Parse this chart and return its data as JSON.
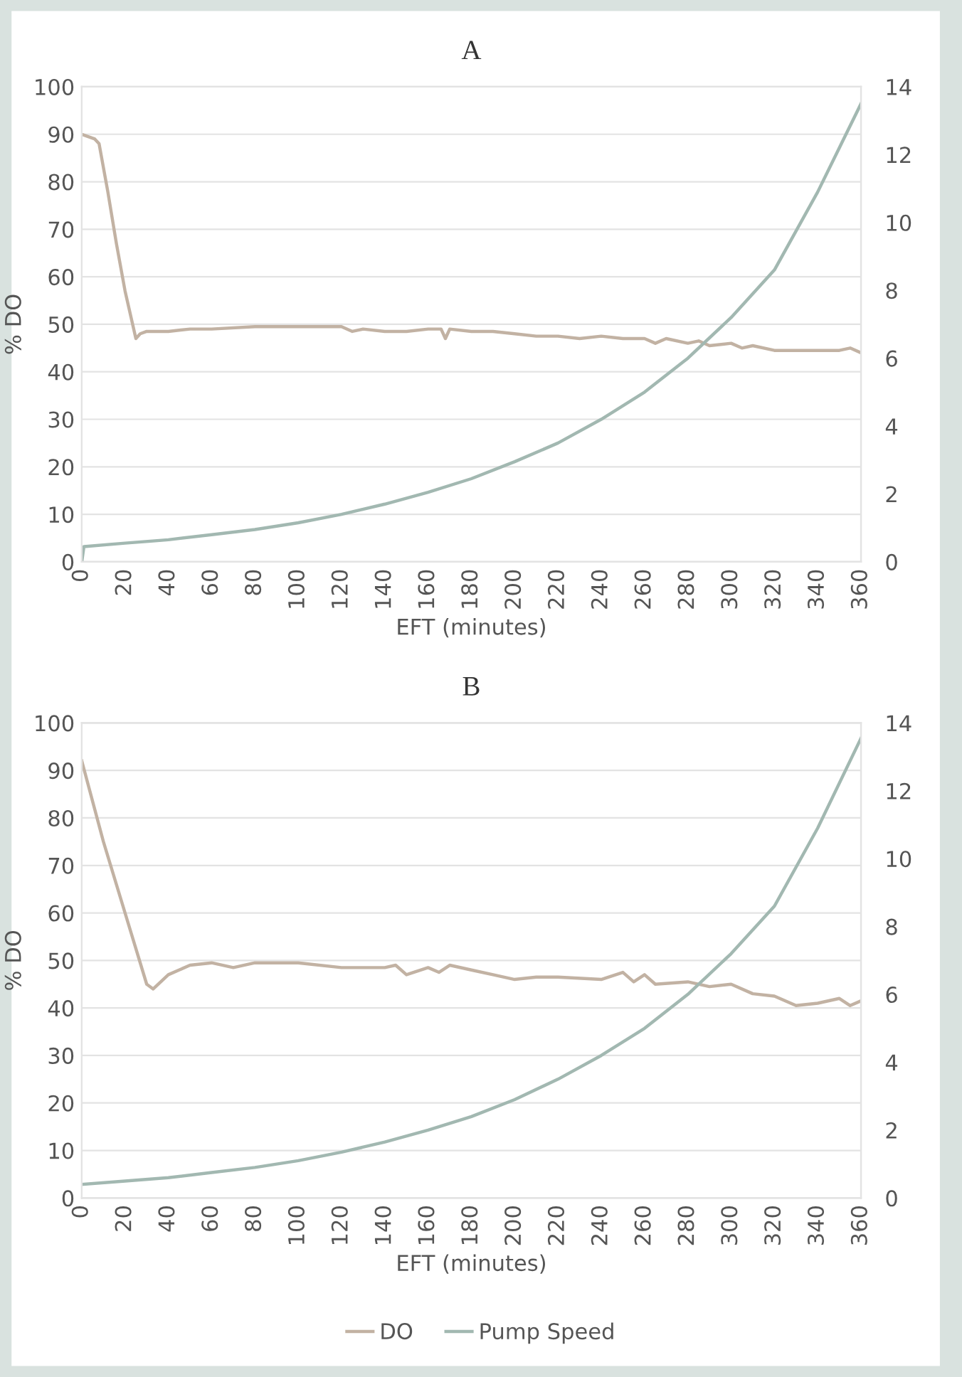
{
  "chart_data": [
    {
      "type": "line",
      "title": "A",
      "xlabel": "EFT (minutes)",
      "ylabel": "% DO",
      "xlim": [
        0,
        360
      ],
      "xticks": [
        0,
        20,
        40,
        60,
        80,
        100,
        120,
        140,
        160,
        180,
        200,
        220,
        240,
        260,
        280,
        300,
        320,
        340,
        360
      ],
      "ylim": [
        0,
        100
      ],
      "yticks": [
        0,
        10,
        20,
        30,
        40,
        50,
        60,
        70,
        80,
        90,
        100
      ],
      "y2lim": [
        0,
        14
      ],
      "y2ticks": [
        0,
        2,
        4,
        6,
        8,
        10,
        12,
        14
      ],
      "grid": "y",
      "legend": false,
      "series": [
        {
          "color": "#c2b2a3",
          "x": [
            0,
            3,
            6,
            8,
            12,
            16,
            20,
            25,
            27,
            30,
            40,
            50,
            60,
            80,
            100,
            120,
            125,
            130,
            140,
            150,
            160,
            166,
            168,
            170,
            180,
            190,
            200,
            210,
            220,
            230,
            240,
            250,
            260,
            265,
            270,
            280,
            285,
            290,
            300,
            305,
            310,
            320,
            330,
            340,
            350,
            355,
            360
          ],
          "values": [
            90,
            89.5,
            89,
            88,
            78,
            67,
            57,
            47,
            48,
            48.5,
            48.5,
            49,
            49,
            49.5,
            49.5,
            49.5,
            48.5,
            49,
            48.5,
            48.5,
            49,
            49,
            47,
            49,
            48.5,
            48.5,
            48,
            47.5,
            47.5,
            47,
            47.5,
            47,
            47,
            46,
            47,
            46,
            46.5,
            45.5,
            46,
            45,
            45.5,
            44.5,
            44.5,
            44.5,
            44.5,
            45,
            44
          ]
        },
        {
          "color": "#a2b8b1",
          "axis": "y2",
          "x": [
            0,
            1,
            20,
            40,
            60,
            80,
            100,
            120,
            140,
            160,
            180,
            200,
            220,
            240,
            260,
            280,
            300,
            320,
            340,
            360
          ],
          "values": [
            0,
            0.45,
            0.55,
            0.65,
            0.8,
            0.95,
            1.15,
            1.4,
            1.7,
            2.05,
            2.45,
            2.95,
            3.5,
            4.2,
            5.0,
            6.0,
            7.2,
            8.6,
            10.9,
            13.5
          ]
        }
      ]
    },
    {
      "type": "line",
      "title": "B",
      "xlabel": "EFT (minutes)",
      "ylabel": "% DO",
      "xlim": [
        0,
        360
      ],
      "xticks": [
        0,
        20,
        40,
        60,
        80,
        100,
        120,
        140,
        160,
        180,
        200,
        220,
        240,
        260,
        280,
        300,
        320,
        340,
        360
      ],
      "ylim": [
        0,
        100
      ],
      "yticks": [
        0,
        10,
        20,
        30,
        40,
        50,
        60,
        70,
        80,
        90,
        100
      ],
      "y2lim": [
        0,
        14
      ],
      "y2ticks": [
        0,
        2,
        4,
        6,
        8,
        10,
        12,
        14
      ],
      "grid": "y",
      "legend": "bottom",
      "series": [
        {
          "name": "DO",
          "color": "#c2b2a3",
          "x": [
            0,
            10,
            20,
            30,
            33,
            40,
            50,
            60,
            70,
            80,
            100,
            120,
            140,
            145,
            150,
            160,
            165,
            170,
            180,
            190,
            200,
            210,
            220,
            240,
            250,
            255,
            260,
            265,
            280,
            290,
            300,
            310,
            320,
            330,
            340,
            350,
            355,
            360
          ],
          "values": [
            92,
            75,
            60,
            45,
            44,
            47,
            49,
            49.5,
            48.5,
            49.5,
            49.5,
            48.5,
            48.5,
            49,
            47,
            48.5,
            47.5,
            49,
            48,
            47,
            46,
            46.5,
            46.5,
            46,
            47.5,
            45.5,
            47,
            45,
            45.5,
            44.5,
            45,
            43,
            42.5,
            40.5,
            41,
            42,
            40.5,
            41.5
          ]
        },
        {
          "name": "Pump Speed",
          "color": "#a2b8b1",
          "axis": "y2",
          "x": [
            0,
            20,
            40,
            60,
            80,
            100,
            120,
            140,
            160,
            180,
            200,
            220,
            240,
            260,
            280,
            300,
            320,
            340,
            360
          ],
          "values": [
            0.4,
            0.5,
            0.6,
            0.75,
            0.9,
            1.1,
            1.35,
            1.65,
            2.0,
            2.4,
            2.9,
            3.5,
            4.2,
            5.0,
            6.0,
            7.2,
            8.6,
            10.9,
            13.55
          ]
        }
      ]
    }
  ]
}
